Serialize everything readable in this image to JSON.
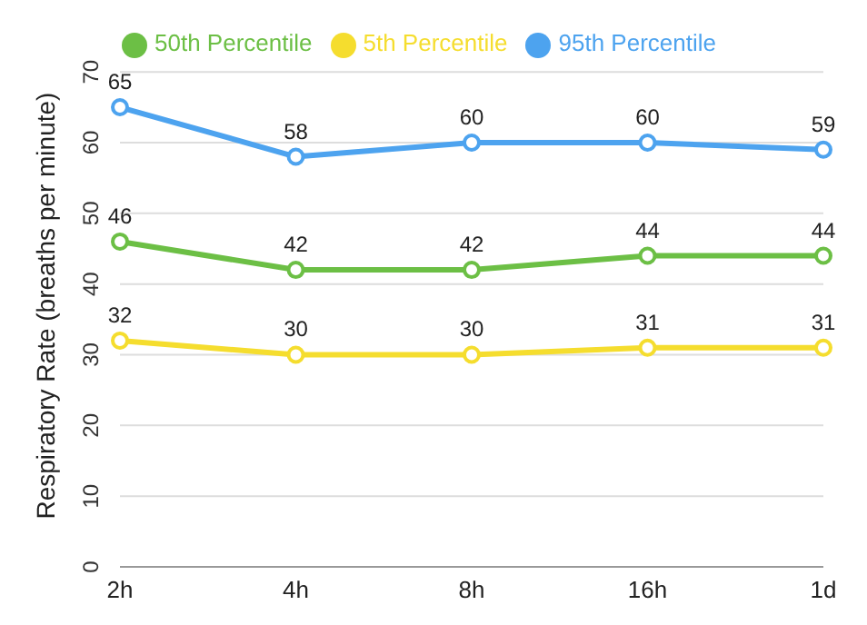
{
  "chart_data": {
    "type": "line",
    "ylabel": "Respiratory Rate (breaths per minute)",
    "categories": [
      "2h",
      "4h",
      "8h",
      "16h",
      "1d"
    ],
    "series": [
      {
        "name": "95th Percentile",
        "color": "#4da3ef",
        "values": [
          65,
          58,
          60,
          60,
          59
        ]
      },
      {
        "name": "50th Percentile",
        "color": "#6cbf45",
        "values": [
          46,
          42,
          42,
          44,
          44
        ]
      },
      {
        "name": "5th Percentile",
        "color": "#f5dd2e",
        "values": [
          32,
          30,
          30,
          31,
          31
        ]
      }
    ],
    "ylim": [
      0,
      70
    ],
    "yticks": [
      0,
      10,
      20,
      30,
      40,
      50,
      60,
      70
    ],
    "grid": "y",
    "legend": "top",
    "marker": "circle",
    "line_style": "solid",
    "data_labels": true
  }
}
